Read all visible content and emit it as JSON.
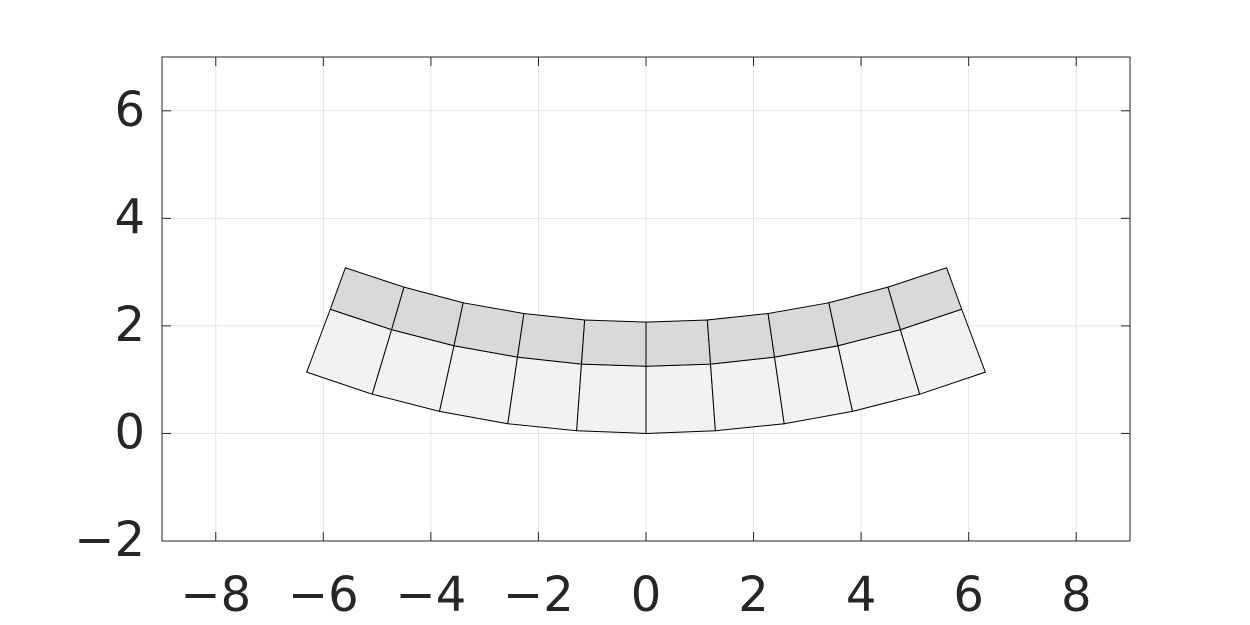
{
  "chart_data": {
    "type": "mesh",
    "xlim": [
      -9,
      9
    ],
    "ylim": [
      -2,
      7
    ],
    "xticks": [
      {
        "value": -8,
        "label": "−8"
      },
      {
        "value": -6,
        "label": "−6"
      },
      {
        "value": -4,
        "label": "−4"
      },
      {
        "value": -2,
        "label": "−2"
      },
      0,
      2,
      4,
      6,
      8
    ],
    "yticks": [
      {
        "value": -2,
        "label": "−2"
      },
      0,
      2,
      4,
      6
    ],
    "grid": true,
    "fills": [
      "#f2f2f2",
      "#d9d9d9"
    ],
    "rows": [
      {
        "x": [
          -6.31,
          -5.09,
          -3.84,
          -2.57,
          -1.29,
          0,
          1.29,
          2.57,
          3.84,
          5.09,
          6.31
        ],
        "y": [
          1.14,
          0.73,
          0.41,
          0.18,
          0.05,
          0,
          0.05,
          0.18,
          0.41,
          0.73,
          1.14
        ]
      },
      {
        "x": [
          -5.87,
          -4.73,
          -3.57,
          -2.39,
          -1.2,
          0,
          1.2,
          2.39,
          3.57,
          4.73,
          5.87
        ],
        "y": [
          2.31,
          1.93,
          1.63,
          1.42,
          1.29,
          1.25,
          1.29,
          1.42,
          1.63,
          1.93,
          2.31
        ]
      },
      {
        "x": [
          -5.59,
          -4.5,
          -3.4,
          -2.27,
          -1.14,
          0,
          1.14,
          2.27,
          3.4,
          4.5,
          5.59
        ],
        "y": [
          3.08,
          2.72,
          2.43,
          2.23,
          2.11,
          2.07,
          2.11,
          2.23,
          2.43,
          2.72,
          3.08
        ]
      }
    ]
  }
}
